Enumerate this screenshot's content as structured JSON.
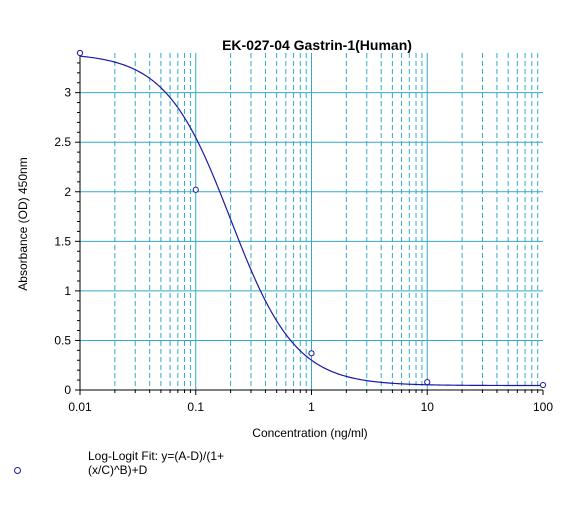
{
  "chart_data": {
    "type": "scatter",
    "title": "EK-027-04 Gastrin-1(Human)",
    "xlabel": "Concentration (ng/ml)",
    "ylabel": "Absorbance (OD) 450nm",
    "x_scale": "log",
    "xlim": [
      0.01,
      100
    ],
    "ylim": [
      0,
      3.4
    ],
    "x_ticks": [
      0.01,
      0.1,
      1,
      10,
      100
    ],
    "x_tick_labels": [
      "0.01",
      "0.1",
      "1",
      "10",
      "100"
    ],
    "y_ticks": [
      0,
      0.5,
      1,
      1.5,
      2,
      2.5,
      3
    ],
    "y_tick_labels": [
      "0",
      "0.5",
      "1",
      "1.5",
      "2",
      "2.5",
      "3"
    ],
    "grid": true,
    "series": [
      {
        "points": [
          {
            "x": 0.01,
            "y": 3.4
          },
          {
            "x": 0.1,
            "y": 2.02
          },
          {
            "x": 1,
            "y": 0.37
          },
          {
            "x": 10,
            "y": 0.08
          },
          {
            "x": 100,
            "y": 0.05
          }
        ],
        "fit": {
          "A": 3.4,
          "B": 1.55,
          "C": 0.2,
          "D": 0.045
        }
      }
    ],
    "legend": {
      "placement": "bottom-left",
      "entries": [
        "Log-Logit Fit: y=(A-D)/(1+(x/C)^B)+D"
      ]
    }
  },
  "colors": {
    "axis": "#000000",
    "grid": "#33aacc",
    "series": "#1a1aa6"
  }
}
